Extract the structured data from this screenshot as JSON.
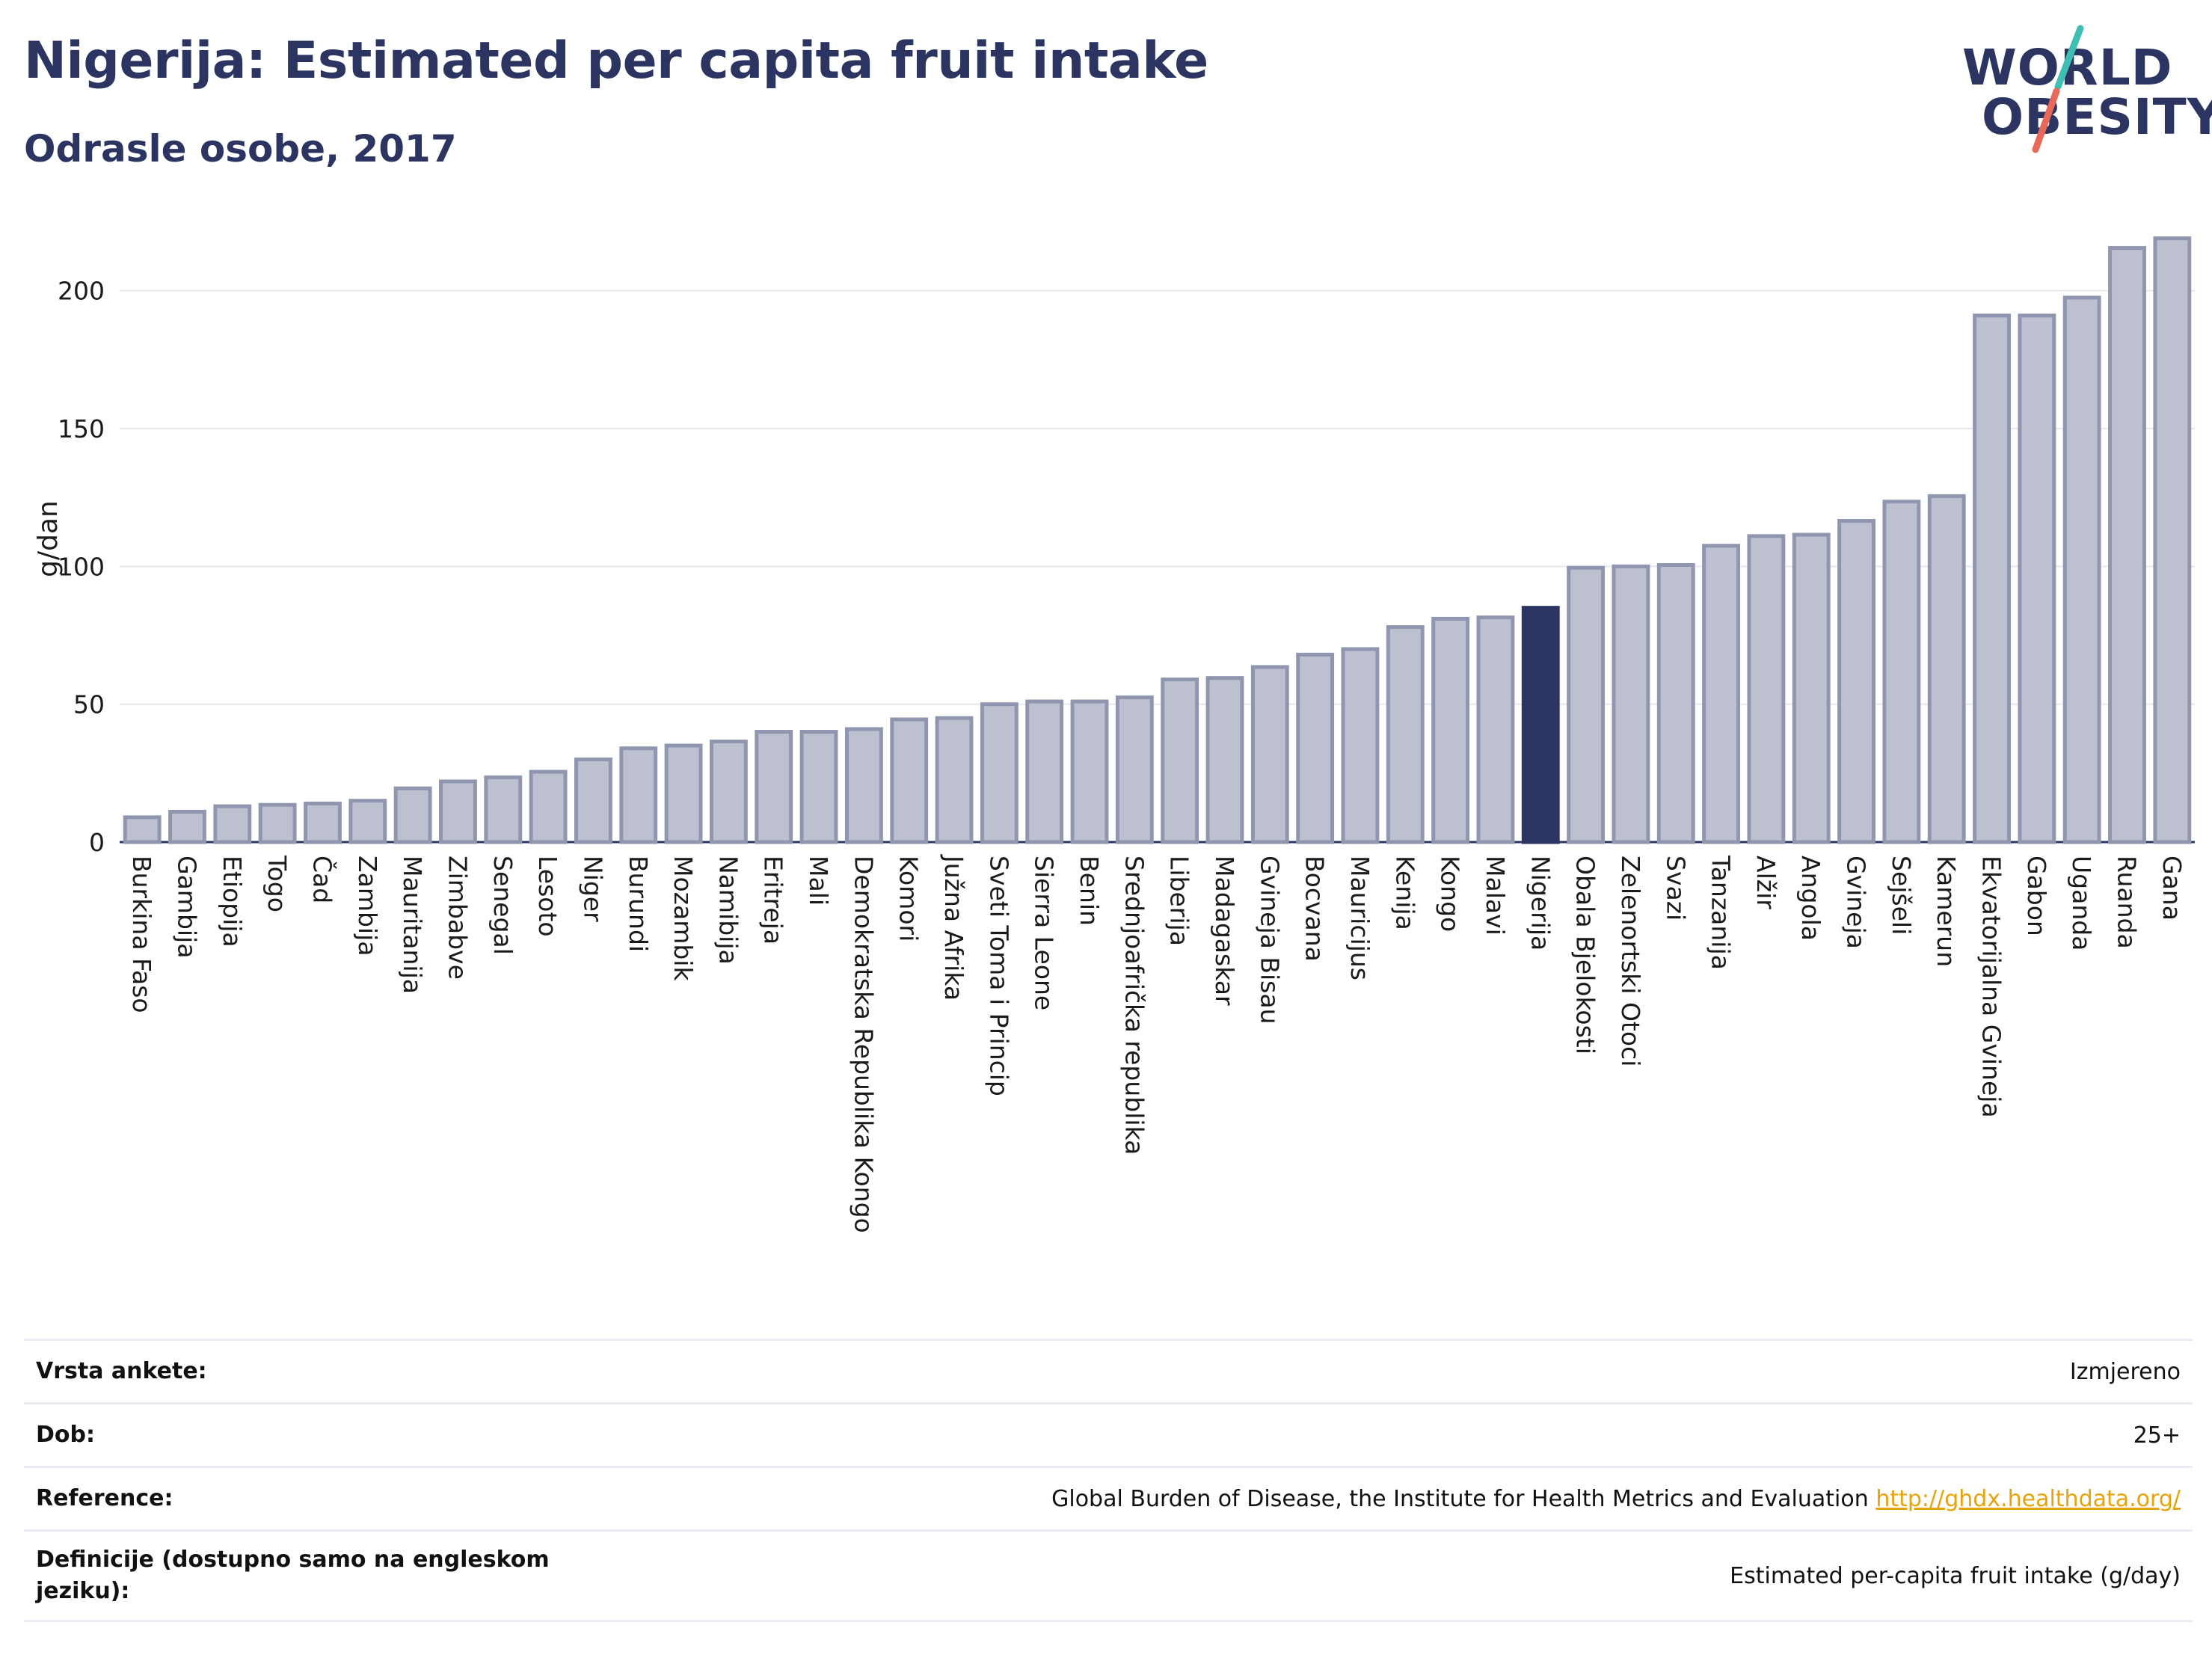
{
  "header": {
    "title": "Nigerija: Estimated per capita fruit intake",
    "subtitle": "Odrasle osobe, 2017"
  },
  "logo": {
    "line1": "WORLD",
    "line2": "OBESITY",
    "colors": {
      "text": "#2c3561",
      "slash_top": "#3fbfb4",
      "slash_bottom": "#e8685a"
    }
  },
  "colors": {
    "bar_fill": "#bcc0cf",
    "bar_stroke": "#9096b0",
    "highlight": "#2c3561",
    "grid": "#e6e8ee",
    "link": "#e8a30c"
  },
  "chart_data": {
    "type": "bar",
    "title": "Nigerija: Estimated per capita fruit intake",
    "subtitle": "Odrasle osobe, 2017",
    "xlabel": "",
    "ylabel": "g/dan",
    "ylim": [
      0,
      220
    ],
    "yticks": [
      0,
      50,
      100,
      150,
      200
    ],
    "grid": true,
    "highlight_category": "Nigerija",
    "categories": [
      "Burkina Faso",
      "Gambija",
      "Etiopija",
      "Togo",
      "Čad",
      "Zambija",
      "Mauritanija",
      "Zimbabve",
      "Senegal",
      "Lesoto",
      "Niger",
      "Burundi",
      "Mozambik",
      "Namibija",
      "Eritreja",
      "Mali",
      "Demokratska Republika Kongo",
      "Komori",
      "Južna Afrika",
      "Sveti Toma i Princip",
      "Sierra Leone",
      "Benin",
      "Srednjoafrička republika",
      "Liberija",
      "Madagaskar",
      "Gvineja Bisau",
      "Bocvana",
      "Mauricijus",
      "Kenija",
      "Kongo",
      "Malavi",
      "Nigerija",
      "Obala Bjelokosti",
      "Zelenortski Otoci",
      "Svazi",
      "Tanzanija",
      "Alžir",
      "Angola",
      "Gvineja",
      "Sejšeli",
      "Kamerun",
      "Ekvatorijalna Gvineja",
      "Gabon",
      "Uganda",
      "Ruanda",
      "Gana"
    ],
    "values": [
      9,
      11,
      13,
      13.5,
      14,
      15,
      19.5,
      22,
      23.5,
      25.5,
      30,
      34,
      35,
      36.5,
      40,
      40,
      41,
      44.5,
      45,
      50,
      51,
      51,
      52.5,
      59,
      59.5,
      63.5,
      68,
      70,
      78,
      81,
      81.5,
      85,
      99.5,
      100,
      100.5,
      107.5,
      111,
      111.5,
      116.5,
      123.5,
      125.5,
      191,
      191,
      197.5,
      215.5,
      219
    ]
  },
  "metadata_table": [
    {
      "label": "Vrsta ankete:",
      "value": "Izmjereno",
      "link": ""
    },
    {
      "label": "Dob:",
      "value": "25+",
      "link": ""
    },
    {
      "label": "Reference:",
      "value": "Global Burden of Disease, the Institute for Health Metrics and Evaluation",
      "link": "http://ghdx.healthdata.org/"
    },
    {
      "label": "Definicije (dostupno samo na engleskom jeziku):",
      "value": "Estimated per-capita fruit intake (g/day)",
      "link": ""
    }
  ]
}
